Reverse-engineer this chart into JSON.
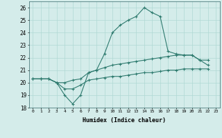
{
  "xlabel": "Humidex (Indice chaleur)",
  "x_values": [
    0,
    1,
    2,
    3,
    4,
    5,
    6,
    7,
    8,
    9,
    10,
    11,
    12,
    13,
    14,
    15,
    16,
    17,
    18,
    19,
    20,
    21,
    22,
    23
  ],
  "line1": [
    20.3,
    20.3,
    20.3,
    20.0,
    19.0,
    18.3,
    19.0,
    20.8,
    21.0,
    22.3,
    24.0,
    24.6,
    25.0,
    25.3,
    26.0,
    25.6,
    25.3,
    22.5,
    22.3,
    22.2,
    22.2,
    21.8,
    21.8,
    null
  ],
  "line2": [
    20.3,
    20.3,
    20.3,
    20.0,
    20.0,
    20.2,
    20.3,
    20.8,
    21.0,
    21.2,
    21.4,
    21.5,
    21.6,
    21.7,
    21.8,
    21.9,
    22.0,
    22.1,
    22.2,
    22.2,
    22.2,
    21.8,
    21.4,
    null
  ],
  "line3": [
    20.3,
    20.3,
    20.3,
    20.0,
    19.5,
    19.5,
    19.8,
    20.2,
    20.3,
    20.4,
    20.5,
    20.5,
    20.6,
    20.7,
    20.8,
    20.8,
    20.9,
    21.0,
    21.0,
    21.1,
    21.1,
    21.1,
    21.1,
    null
  ],
  "line_color": "#2d7a6e",
  "bg_color": "#d4ecea",
  "grid_color": "#afd8d4",
  "ylim": [
    18,
    26.5
  ],
  "yticks": [
    18,
    19,
    20,
    21,
    22,
    23,
    24,
    25,
    26
  ],
  "xtick_labels": [
    "0",
    "1",
    "2",
    "3",
    "4",
    "5",
    "6",
    "7",
    "8",
    "9",
    "10",
    "11",
    "12",
    "13",
    "14",
    "15",
    "16",
    "17",
    "18",
    "19",
    "20",
    "21",
    "22",
    "23"
  ]
}
